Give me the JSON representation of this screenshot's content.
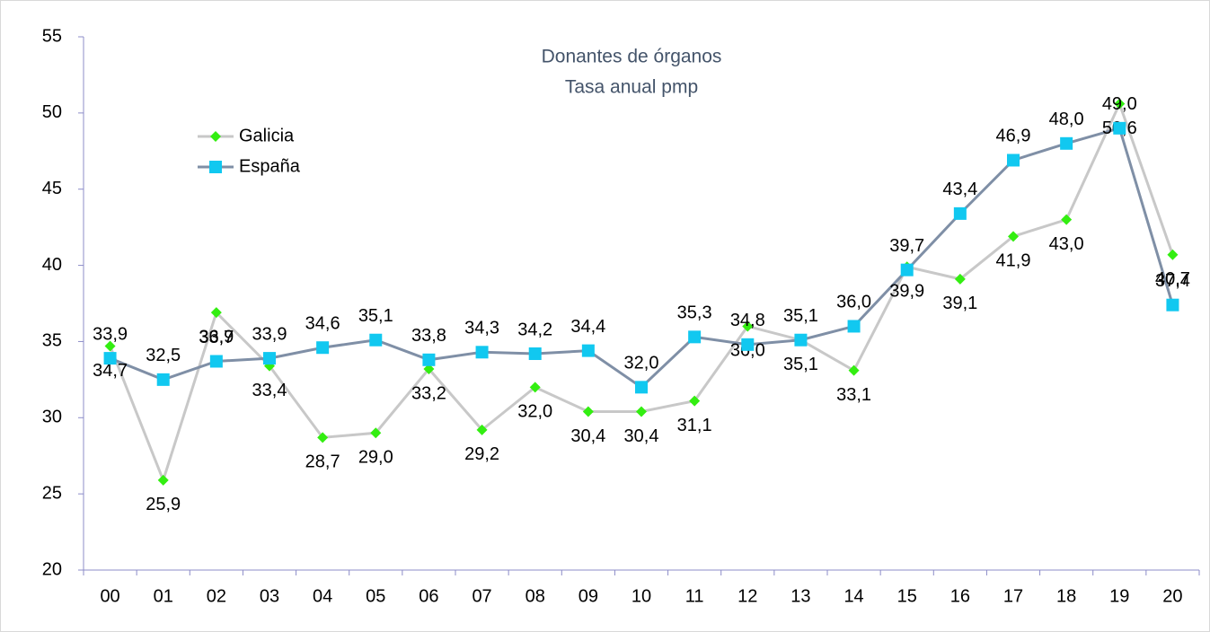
{
  "chart_data": {
    "type": "line",
    "title": "Donantes de órganos",
    "subtitle": "Tasa anual pmp",
    "categories": [
      "00",
      "01",
      "02",
      "03",
      "04",
      "05",
      "06",
      "07",
      "08",
      "09",
      "10",
      "11",
      "12",
      "13",
      "14",
      "15",
      "16",
      "17",
      "18",
      "19",
      "20"
    ],
    "series": [
      {
        "name": "Galicia",
        "color": "#c8c8c8",
        "marker_color": "#33ee11",
        "marker": "diamond",
        "values": [
          34.7,
          25.9,
          36.9,
          33.4,
          28.7,
          29.0,
          33.2,
          29.2,
          32.0,
          30.4,
          30.4,
          31.1,
          36.0,
          35.1,
          33.1,
          39.9,
          39.1,
          41.9,
          43.0,
          50.6,
          40.7
        ],
        "value_labels": [
          "34,7",
          "25,9",
          "36,9",
          "33,4",
          "28,7",
          "29,0",
          "33,2",
          "29,2",
          "32,0",
          "30,4",
          "30,4",
          "31,1",
          "36,0",
          "35,1",
          "33,1",
          "39,9",
          "39,1",
          "41,9",
          "43,0",
          "50,6",
          "40,7"
        ]
      },
      {
        "name": "España",
        "color": "#7f8fa6",
        "marker_color": "#11c8f0",
        "marker": "square",
        "values": [
          33.9,
          32.5,
          33.7,
          33.9,
          34.6,
          35.1,
          33.8,
          34.3,
          34.2,
          34.4,
          32.0,
          35.3,
          34.8,
          35.1,
          36.0,
          39.7,
          43.4,
          46.9,
          48.0,
          49.0,
          37.4
        ],
        "value_labels": [
          "33,9",
          "32,5",
          "33,7",
          "33,9",
          "34,6",
          "35,1",
          "33,8",
          "34,3",
          "34,2",
          "34,4",
          "32,0",
          "35,3",
          "34,8",
          "35,1",
          "36,0",
          "39,7",
          "43,4",
          "46,9",
          "48,0",
          "49,0",
          "37,4"
        ]
      }
    ],
    "ylim": [
      20,
      55
    ],
    "yticks": [
      20,
      25,
      30,
      35,
      40,
      45,
      50,
      55
    ],
    "grid": false,
    "legend": "upper left"
  }
}
